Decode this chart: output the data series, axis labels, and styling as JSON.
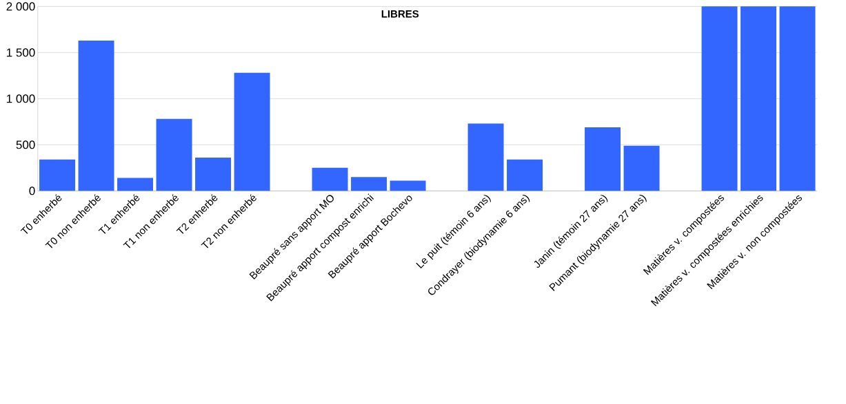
{
  "chart_data": {
    "type": "bar",
    "title": "LIBRES",
    "categories": [
      "T0 enherbé",
      "T0 non enherbé",
      "T1 enherbé",
      "T1 non enherbé",
      "T2 enherbé",
      "T2 non enherbé",
      null,
      "Beaupré sans apport MO",
      "Beaupré apport compost enrichi",
      "Beaupré apport Bochevo",
      null,
      "Le puit (témoin 6 ans)",
      "Condrayer (biodynamie 6 ans)",
      null,
      "Janin (témoin 27 ans)",
      "Pumant (biodynamie 27 ans)",
      null,
      "Matières v. compostées",
      "Matières v. compostées enrichies",
      "Matières v. non compostées"
    ],
    "values": [
      340,
      1630,
      140,
      780,
      360,
      1280,
      null,
      250,
      150,
      110,
      null,
      730,
      340,
      null,
      690,
      490,
      null,
      2000,
      2000,
      2000
    ],
    "color": "#3366ff",
    "ylim": [
      0,
      2000
    ],
    "yticks": [
      0,
      500,
      {
        "value": 1000,
        "label": "1 000"
      },
      {
        "value": 1500,
        "label": "1 500"
      },
      {
        "value": 2000,
        "label": "2 000"
      }
    ],
    "grid": "y"
  }
}
